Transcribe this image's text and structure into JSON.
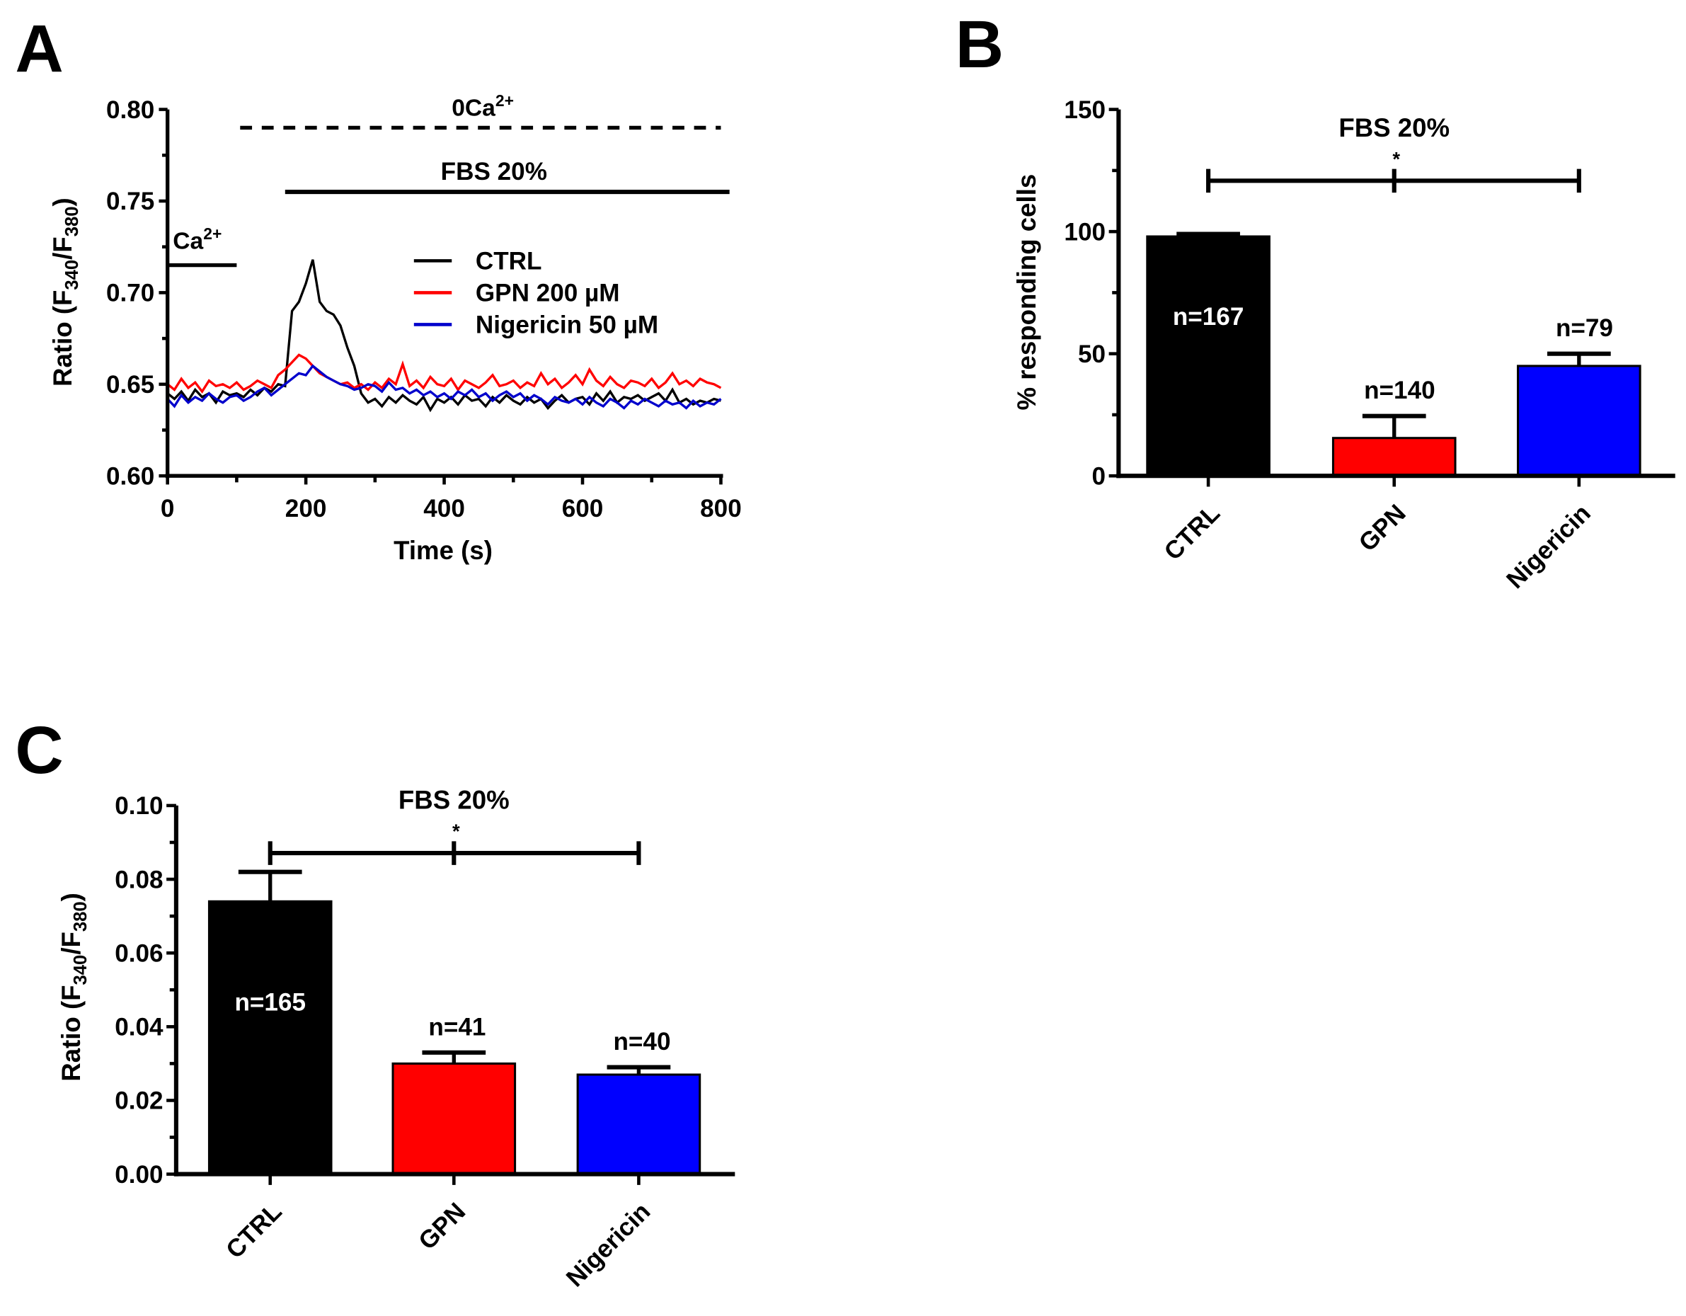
{
  "chart_data": [
    {
      "panel": "A",
      "type": "line",
      "xlabel": "Time (s)",
      "ylabel": {
        "pre": "Ratio (F",
        "sub1": "340",
        "mid": "/F",
        "sub2": "380",
        "post": ")"
      },
      "xlim": [
        0,
        800
      ],
      "ylim": [
        0.6,
        0.8
      ],
      "xticks": [
        "0",
        "200",
        "400",
        "600",
        "800"
      ],
      "yticks": [
        "0.60",
        "0.65",
        "0.70",
        "0.75",
        "0.80"
      ],
      "annotations": {
        "ca": {
          "base": "Ca",
          "sup": "2+",
          "x_range": [
            0,
            100
          ],
          "y": 0.715
        },
        "zero_ca": {
          "base": "0Ca",
          "sup": "2+",
          "x_range": [
            105,
            800
          ],
          "y": 0.79,
          "style": "dashed"
        },
        "fbs": {
          "label": "FBS 20%",
          "x_range": [
            170,
            800
          ],
          "y": 0.755
        }
      },
      "legend_position": "center-right",
      "x_step": 10,
      "series": [
        {
          "name": "CTRL",
          "color": "#000000",
          "values": [
            0.645,
            0.642,
            0.646,
            0.641,
            0.647,
            0.643,
            0.645,
            0.64,
            0.646,
            0.644,
            0.645,
            0.643,
            0.647,
            0.644,
            0.648,
            0.646,
            0.65,
            0.649,
            0.69,
            0.695,
            0.705,
            0.718,
            0.695,
            0.69,
            0.688,
            0.682,
            0.67,
            0.66,
            0.645,
            0.64,
            0.642,
            0.638,
            0.643,
            0.64,
            0.644,
            0.641,
            0.639,
            0.643,
            0.636,
            0.642,
            0.64,
            0.643,
            0.639,
            0.644,
            0.641,
            0.642,
            0.638,
            0.643,
            0.64,
            0.644,
            0.641,
            0.639,
            0.643,
            0.64,
            0.642,
            0.637,
            0.641,
            0.644,
            0.64,
            0.642,
            0.643,
            0.639,
            0.645,
            0.641,
            0.646,
            0.64,
            0.643,
            0.642,
            0.644,
            0.641,
            0.643,
            0.645,
            0.641,
            0.647,
            0.64,
            0.642,
            0.639,
            0.641,
            0.64,
            0.642,
            0.641
          ]
        },
        {
          "name": "GPN 200 µM",
          "color": "#ff0000",
          "values": [
            0.65,
            0.647,
            0.653,
            0.648,
            0.651,
            0.646,
            0.652,
            0.649,
            0.65,
            0.648,
            0.651,
            0.647,
            0.649,
            0.652,
            0.65,
            0.648,
            0.655,
            0.658,
            0.662,
            0.666,
            0.664,
            0.66,
            0.656,
            0.654,
            0.652,
            0.65,
            0.651,
            0.648,
            0.65,
            0.647,
            0.651,
            0.648,
            0.653,
            0.65,
            0.661,
            0.649,
            0.652,
            0.648,
            0.654,
            0.65,
            0.649,
            0.653,
            0.647,
            0.652,
            0.65,
            0.648,
            0.651,
            0.655,
            0.649,
            0.65,
            0.652,
            0.648,
            0.651,
            0.649,
            0.656,
            0.65,
            0.653,
            0.648,
            0.651,
            0.655,
            0.65,
            0.658,
            0.652,
            0.649,
            0.654,
            0.65,
            0.648,
            0.652,
            0.651,
            0.649,
            0.653,
            0.648,
            0.651,
            0.656,
            0.65,
            0.652,
            0.649,
            0.653,
            0.651,
            0.65,
            0.648
          ]
        },
        {
          "name": "Nigericin 50 µM",
          "color": "#0000cc",
          "values": [
            0.642,
            0.638,
            0.644,
            0.64,
            0.643,
            0.641,
            0.645,
            0.642,
            0.64,
            0.643,
            0.644,
            0.641,
            0.643,
            0.646,
            0.648,
            0.644,
            0.647,
            0.65,
            0.653,
            0.656,
            0.655,
            0.66,
            0.657,
            0.654,
            0.652,
            0.65,
            0.649,
            0.647,
            0.648,
            0.65,
            0.649,
            0.646,
            0.651,
            0.647,
            0.648,
            0.645,
            0.647,
            0.644,
            0.646,
            0.643,
            0.645,
            0.642,
            0.646,
            0.644,
            0.647,
            0.643,
            0.645,
            0.641,
            0.644,
            0.646,
            0.643,
            0.645,
            0.641,
            0.644,
            0.642,
            0.639,
            0.643,
            0.641,
            0.64,
            0.642,
            0.639,
            0.643,
            0.64,
            0.638,
            0.642,
            0.64,
            0.637,
            0.641,
            0.639,
            0.642,
            0.64,
            0.638,
            0.641,
            0.639,
            0.64,
            0.637,
            0.641,
            0.638,
            0.64,
            0.639,
            0.642
          ]
        }
      ]
    },
    {
      "panel": "B",
      "type": "bar",
      "title": "FBS 20%",
      "ylabel": "% responding cells",
      "ylim": [
        0,
        150
      ],
      "yticks": [
        "0",
        "50",
        "100",
        "150"
      ],
      "categories": [
        "CTRL",
        "GPN",
        "Nigericin"
      ],
      "values": [
        98,
        15.5,
        45
      ],
      "errors": [
        1,
        9,
        5
      ],
      "colors": [
        "#000000",
        "#ff0000",
        "#0000ff"
      ],
      "n_labels": [
        "n=167",
        "n=140",
        "n=79"
      ],
      "significance": "*"
    },
    {
      "panel": "C",
      "type": "bar",
      "title": "FBS 20%",
      "ylabel": {
        "pre": "Ratio (F",
        "sub1": "340",
        "mid": "/F",
        "sub2": "380",
        "post": ")"
      },
      "ylim": [
        0,
        0.1
      ],
      "yticks": [
        "0.00",
        "0.02",
        "0.04",
        "0.06",
        "0.08",
        "0.10"
      ],
      "categories": [
        "CTRL",
        "GPN",
        "Nigericin"
      ],
      "values": [
        0.074,
        0.03,
        0.027
      ],
      "errors": [
        0.008,
        0.003,
        0.002
      ],
      "colors": [
        "#000000",
        "#ff0000",
        "#0000ff"
      ],
      "n_labels": [
        "n=165",
        "n=41",
        "n=40"
      ],
      "significance": "*"
    }
  ]
}
